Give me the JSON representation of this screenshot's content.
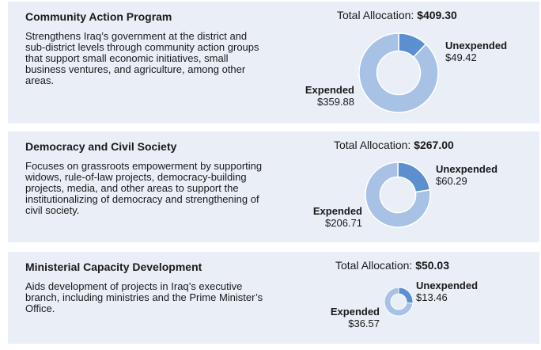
{
  "colors": {
    "panel_bg": "#e9eef7",
    "expended": "#a8c2e6",
    "unexpended": "#5b8fd0"
  },
  "programs": [
    {
      "title": "Community Action Program",
      "description": "Strengthens Iraq’s government at the district and sub-district levels through community action groups that support small economic initiatives, small business ventures, and agriculture, among other areas.",
      "total_label": "Total Allocation:",
      "total_value": "$409.30",
      "expended_label": "Expended",
      "expended_value": "$359.88",
      "unexpended_label": "Unexpended",
      "unexpended_value": "$49.42"
    },
    {
      "title": "Democracy and Civil Society",
      "description": "Focuses on grassroots empowerment by supporting widows, rule-of-law projects, democracy-building projects, media, and other areas to support the institutionalizing of democracy and strengthening of civil society.",
      "total_label": "Total Allocation:",
      "total_value": "$267.00",
      "expended_label": "Expended",
      "expended_value": "$206.71",
      "unexpended_label": "Unexpended",
      "unexpended_value": "$60.29"
    },
    {
      "title": "Ministerial Capacity Development",
      "description": "Aids development of projects in Iraq’s executive branch, including ministries and the Prime Minister’s Office.",
      "total_label": "Total Allocation:",
      "total_value": "$50.03",
      "expended_label": "Expended",
      "expended_value": "$36.57",
      "unexpended_label": "Unexpended",
      "unexpended_value": "$13.46"
    }
  ],
  "chart_data": [
    {
      "type": "pie",
      "categories": [
        "Expended",
        "Unexpended"
      ],
      "values": [
        359.88,
        49.42
      ],
      "total": 409.3
    },
    {
      "type": "pie",
      "categories": [
        "Expended",
        "Unexpended"
      ],
      "values": [
        206.71,
        60.29
      ],
      "total": 267.0
    },
    {
      "type": "pie",
      "categories": [
        "Expended",
        "Unexpended"
      ],
      "values": [
        36.57,
        13.46
      ],
      "total": 50.03
    }
  ]
}
